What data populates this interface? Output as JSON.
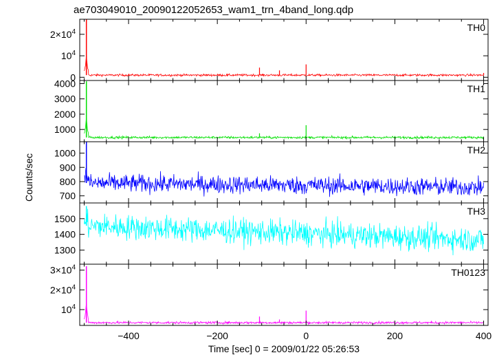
{
  "title": "ae703049010_20090122052653_wam1_trn_4band_long.qdp",
  "ylabel": "Counts/sec",
  "xlabel": "Time [sec] 0 = 2009/01/22 05:26:53",
  "chart_data": {
    "type": "line",
    "xlim": [
      -510,
      410
    ],
    "x_ticks": [
      -400,
      -200,
      0,
      200,
      400
    ],
    "x_tick_labels": [
      "−400",
      "−200",
      "0",
      "200",
      "400"
    ],
    "panels": [
      {
        "name": "TH0",
        "color": "#ff0000",
        "ylim": [
          -1500,
          27000
        ],
        "y_ticks": [
          {
            "value": 20000,
            "mantissa": "2×10",
            "exp": "4"
          },
          {
            "value": 10000,
            "mantissa": "10",
            "exp": "4"
          },
          {
            "value": 0,
            "mantissa": "0",
            "exp": ""
          }
        ],
        "baseline": 1000,
        "noise": 250,
        "trend": 0,
        "peak": {
          "x": -495,
          "value": 27000
        },
        "spikes": [
          {
            "x": -105,
            "value": 4500
          },
          {
            "x": -60,
            "value": 3200
          },
          {
            "x": 0,
            "value": 6000
          },
          {
            "x": 400,
            "value": 2000
          }
        ]
      },
      {
        "name": "TH1",
        "color": "#00e000",
        "ylim": [
          200,
          4200
        ],
        "y_ticks": [
          {
            "value": 4000,
            "label": "4000"
          },
          {
            "value": 3000,
            "label": "3000"
          },
          {
            "value": 2000,
            "label": "2000"
          },
          {
            "value": 1000,
            "label": "1000"
          }
        ],
        "baseline": 480,
        "noise": 40,
        "trend": 0,
        "peak": {
          "x": -495,
          "value": 4150
        },
        "spikes": [
          {
            "x": -105,
            "value": 750
          },
          {
            "x": 0,
            "value": 1280
          }
        ]
      },
      {
        "name": "TH2",
        "color": "#0000ff",
        "ylim": [
          650,
          1080
        ],
        "y_ticks": [
          {
            "value": 1000,
            "label": "1000"
          },
          {
            "value": 900,
            "label": "900"
          },
          {
            "value": 800,
            "label": "800"
          },
          {
            "value": 700,
            "label": "700"
          }
        ],
        "baseline": 790,
        "noise": 32,
        "trend": -30,
        "peak": {
          "x": -495,
          "value": 1080
        },
        "spikes": []
      },
      {
        "name": "TH3",
        "color": "#00ffff",
        "ylim": [
          1210,
          1600
        ],
        "y_ticks": [
          {
            "value": 1500,
            "label": "1500"
          },
          {
            "value": 1400,
            "label": "1400"
          },
          {
            "value": 1300,
            "label": "1300"
          }
        ],
        "baseline": 1455,
        "noise": 40,
        "trend": -90,
        "peak": {
          "x": -495,
          "value": 1580
        },
        "spikes": []
      },
      {
        "name": "TH0123",
        "color": "#ff00ff",
        "ylim": [
          2000,
          33000
        ],
        "y_ticks": [
          {
            "value": 30000,
            "mantissa": "3×10",
            "exp": "4"
          },
          {
            "value": 20000,
            "mantissa": "2×10",
            "exp": "4"
          },
          {
            "value": 10000,
            "mantissa": "10",
            "exp": "4"
          }
        ],
        "baseline": 3400,
        "noise": 300,
        "trend": 0,
        "peak": {
          "x": -495,
          "value": 32000
        },
        "spikes": [
          {
            "x": -105,
            "value": 6500
          },
          {
            "x": -60,
            "value": 5000
          },
          {
            "x": 0,
            "value": 9500
          }
        ]
      }
    ]
  }
}
